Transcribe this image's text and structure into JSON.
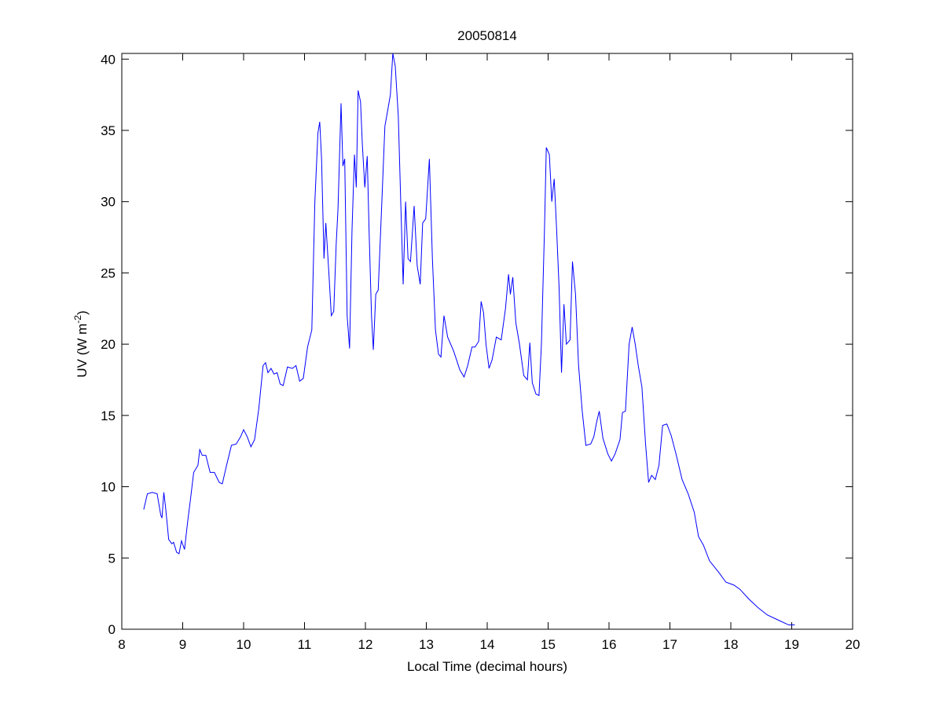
{
  "chart_data": {
    "type": "line",
    "title": "20050814",
    "x_label": "Local Time (decimal hours)",
    "y_label": {
      "text": "UV (W m",
      "sup": "-2",
      "end": ")"
    },
    "xlim": [
      8,
      20
    ],
    "xticks": [
      8,
      9,
      10,
      11,
      12,
      13,
      14,
      15,
      16,
      17,
      18,
      19,
      20
    ],
    "ylim": [
      0,
      40.4
    ],
    "yticks": [
      0,
      5,
      10,
      15,
      20,
      25,
      30,
      35,
      40
    ],
    "grid": false,
    "series": [
      {
        "name": "UV",
        "color": "#0000ff",
        "x": [
          8.36,
          8.42,
          8.5,
          8.58,
          8.64,
          8.66,
          8.69,
          8.72,
          8.77,
          8.82,
          8.85,
          8.9,
          8.94,
          8.98,
          9.03,
          9.08,
          9.13,
          9.18,
          9.25,
          9.28,
          9.32,
          9.38,
          9.45,
          9.52,
          9.6,
          9.65,
          9.72,
          9.8,
          9.88,
          9.95,
          10.0,
          10.06,
          10.12,
          10.18,
          10.25,
          10.32,
          10.36,
          10.4,
          10.45,
          10.5,
          10.55,
          10.6,
          10.65,
          10.72,
          10.8,
          10.86,
          10.92,
          10.98,
          11.05,
          11.12,
          11.17,
          11.22,
          11.25,
          11.28,
          11.32,
          11.35,
          11.4,
          11.44,
          11.48,
          11.52,
          11.55,
          11.6,
          11.63,
          11.66,
          11.7,
          11.74,
          11.78,
          11.82,
          11.85,
          11.88,
          11.92,
          11.95,
          11.99,
          12.03,
          12.06,
          12.1,
          12.13,
          12.17,
          12.21,
          12.27,
          12.32,
          12.37,
          12.41,
          12.45,
          12.49,
          12.54,
          12.58,
          12.62,
          12.66,
          12.7,
          12.74,
          12.8,
          12.85,
          12.9,
          12.94,
          12.99,
          13.05,
          13.1,
          13.15,
          13.2,
          13.24,
          13.29,
          13.35,
          13.45,
          13.55,
          13.62,
          13.68,
          13.75,
          13.8,
          13.86,
          13.9,
          13.94,
          13.98,
          14.03,
          14.08,
          14.15,
          14.23,
          14.3,
          14.35,
          14.38,
          14.42,
          14.47,
          14.53,
          14.6,
          14.66,
          14.7,
          14.74,
          14.8,
          14.85,
          14.89,
          14.94,
          14.97,
          15.02,
          15.06,
          15.1,
          15.14,
          15.18,
          15.22,
          15.26,
          15.3,
          15.36,
          15.4,
          15.45,
          15.5,
          15.56,
          15.62,
          15.7,
          15.75,
          15.8,
          15.84,
          15.9,
          15.98,
          16.04,
          16.1,
          16.18,
          16.22,
          16.27,
          16.33,
          16.38,
          16.43,
          16.48,
          16.54,
          16.6,
          16.65,
          16.7,
          16.76,
          16.82,
          16.88,
          16.95,
          17.02,
          17.1,
          17.2,
          17.3,
          17.4,
          17.47,
          17.55,
          17.65,
          17.8,
          17.92,
          18.05,
          18.15,
          18.3,
          18.45,
          18.6,
          18.8,
          18.95,
          19.05
        ],
        "values": [
          8.4,
          9.5,
          9.6,
          9.5,
          8.0,
          7.8,
          9.6,
          8.5,
          6.3,
          6.0,
          6.1,
          5.4,
          5.3,
          6.2,
          5.6,
          7.5,
          9.2,
          11.0,
          11.5,
          12.6,
          12.2,
          12.2,
          11.0,
          11.0,
          10.3,
          10.2,
          11.5,
          12.9,
          13.0,
          13.5,
          14.0,
          13.5,
          12.8,
          13.3,
          15.5,
          18.5,
          18.7,
          18.0,
          18.3,
          17.9,
          18.0,
          17.2,
          17.1,
          18.4,
          18.3,
          18.5,
          17.4,
          17.6,
          19.8,
          21,
          30,
          34.8,
          35.6,
          33,
          26,
          28.5,
          25,
          22,
          22.3,
          27,
          29.5,
          36.9,
          32.5,
          33,
          22,
          19.7,
          28,
          33.3,
          31,
          37.8,
          37,
          34,
          31,
          33.2,
          28,
          22,
          19.6,
          23.5,
          23.8,
          30,
          35.3,
          36.5,
          37.5,
          40.4,
          39.5,
          36,
          30,
          24.2,
          30,
          26,
          25.8,
          29.7,
          25.5,
          24.2,
          28.5,
          28.8,
          33,
          26,
          21,
          19.3,
          19.1,
          22,
          20.5,
          19.5,
          18.2,
          17.7,
          18.5,
          19.8,
          19.8,
          20.2,
          23.0,
          22.2,
          20,
          18.3,
          18.9,
          20.5,
          20.3,
          22.5,
          24.9,
          23.5,
          24.7,
          21.5,
          20,
          17.8,
          17.5,
          20.1,
          17.3,
          16.5,
          16.4,
          20,
          28,
          33.8,
          33.3,
          30,
          31.6,
          28,
          24,
          18,
          22.8,
          20,
          20.3,
          25.8,
          23.5,
          18.5,
          15.3,
          12.9,
          13.0,
          13.5,
          14.6,
          15.3,
          13.4,
          12.3,
          11.8,
          12.3,
          13.3,
          15.2,
          15.3,
          20,
          21.2,
          20,
          18.5,
          17,
          13,
          10.3,
          10.8,
          10.5,
          11.5,
          14.3,
          14.4,
          13.6,
          12.3,
          10.5,
          9.5,
          8.2,
          6.5,
          5.9,
          4.8,
          4.0,
          3.3,
          3.1,
          2.8,
          2.1,
          1.5,
          1.0,
          0.6,
          0.3,
          0.3
        ]
      }
    ]
  }
}
